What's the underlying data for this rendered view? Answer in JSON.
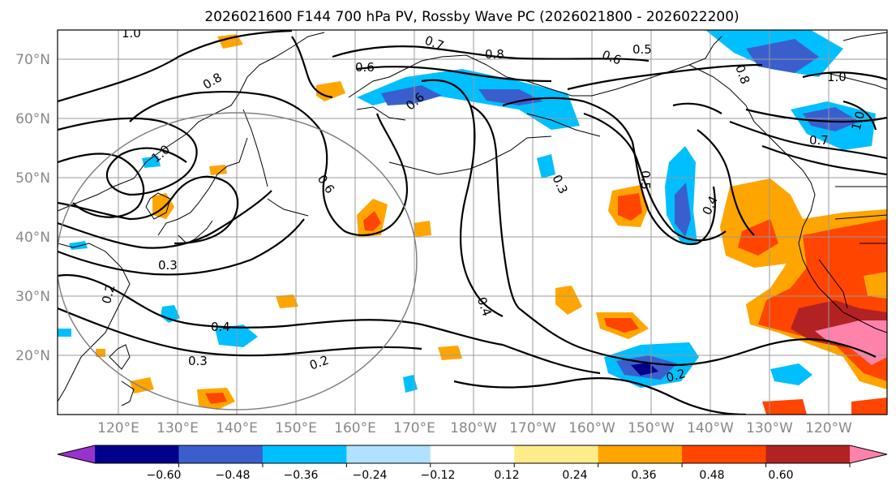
{
  "title": "2026021600 F144 700 hPa PV, Rossby Wave PC (2026021800 - 2026022200)",
  "map": {
    "lat_labels": [
      "70°N",
      "60°N",
      "50°N",
      "40°N",
      "30°N",
      "20°N"
    ],
    "lon_labels": [
      "120°E",
      "130°E",
      "140°E",
      "150°E",
      "160°E",
      "170°E",
      "180°W",
      "170°W",
      "160°W",
      "150°W",
      "140°W",
      "130°W",
      "120°W"
    ],
    "contour_labels": [
      "1.0",
      "0.8",
      "0.6",
      "0.7",
      "0.8",
      "0.6",
      "0.5",
      "1.0",
      "0.8",
      "0.6",
      "1.0",
      "0.7",
      "0.5",
      "0.4",
      "0.3",
      "0.6",
      "0.3",
      "0.2",
      "0.4",
      "0.3",
      "0.2",
      "0.4",
      "0.2",
      "1.0"
    ]
  },
  "colorbar": {
    "tick_labels": [
      "−0.60",
      "−0.48",
      "−0.36",
      "−0.24",
      "−0.12",
      "0.12",
      "0.24",
      "0.36",
      "0.48",
      "0.60"
    ],
    "colors": [
      "#9932cc",
      "#00008b",
      "#3a5fcd",
      "#00bfff",
      "#b0e2ff",
      "#ffffff",
      "#ffec8b",
      "#ffa500",
      "#ff4500",
      "#b22222",
      "#ff82ab"
    ]
  }
}
